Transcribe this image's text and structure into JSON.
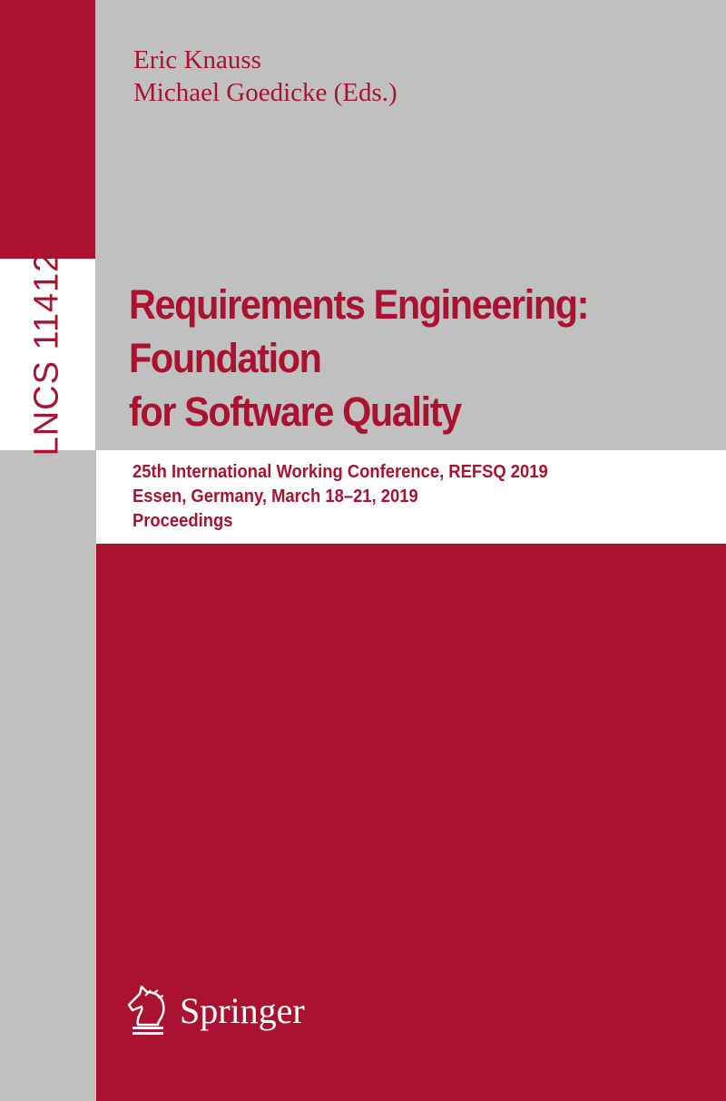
{
  "cover": {
    "series_label": "LNCS 11412",
    "editors": [
      "Eric Knauss",
      "Michael Goedicke (Eds.)"
    ],
    "title_lines": [
      "Requirements Engineering:",
      "Foundation",
      "for Software Quality"
    ],
    "subtitle_lines": [
      "25th International Working Conference, REFSQ 2019",
      "Essen, Germany, March 18–21, 2019",
      "Proceedings"
    ],
    "publisher": "Springer",
    "publisher_icon": "knight-chess-horse-icon",
    "colors": {
      "red": "#aa1230",
      "gray": "#c0c0c0",
      "white": "#ffffff"
    }
  }
}
